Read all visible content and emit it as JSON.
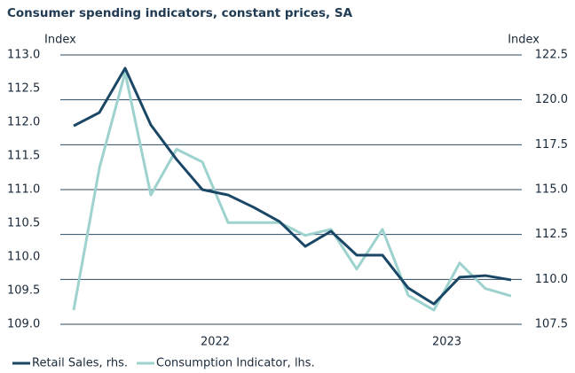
{
  "chart_data": {
    "type": "line",
    "title": "Consumer spending indicators, constant prices, SA",
    "y_label": "Index",
    "y2_label": "Index",
    "categories": [
      null,
      null,
      null,
      null,
      null,
      "2022",
      null,
      null,
      null,
      null,
      null,
      null,
      null,
      null,
      "2023",
      null,
      null,
      null
    ],
    "series": [
      {
        "name": "Retail Sales, rhs.",
        "color": "#1b4766",
        "axis": "y2",
        "values": [
          118.55,
          119.29,
          121.76,
          118.6,
          116.68,
          115.0,
          114.7,
          114.01,
          113.22,
          111.84,
          112.68,
          111.35,
          111.35,
          109.52,
          108.63,
          110.12,
          110.21,
          109.97
        ]
      },
      {
        "name": "Consumption Indicator, lhs.",
        "color": "#9dd2ce",
        "axis": "y",
        "values": [
          109.21,
          111.32,
          112.74,
          110.92,
          111.6,
          111.41,
          110.51,
          110.51,
          110.51,
          110.32,
          110.41,
          109.82,
          110.41,
          109.43,
          109.21,
          109.91,
          109.53,
          109.42
        ]
      }
    ],
    "ylim": [
      109.0,
      113.0
    ],
    "yticks": [
      {
        "value": 109,
        "label": "109.0"
      },
      109.5,
      {
        "value": 110,
        "label": "110.0"
      },
      110.5,
      {
        "value": 111,
        "label": "111.0"
      },
      111.5,
      {
        "value": 112,
        "label": "112.0"
      },
      112.5,
      {
        "value": 113,
        "label": "113.0"
      }
    ],
    "y2lim": [
      107.5,
      122.5
    ],
    "y2ticks": [
      107.5,
      {
        "value": 110,
        "label": "110.0"
      },
      112.5,
      {
        "value": 115,
        "label": "115.0"
      },
      117.5,
      {
        "value": 120,
        "label": "120.0"
      },
      122.5
    ],
    "grid": true,
    "legend": "bottom-left"
  }
}
